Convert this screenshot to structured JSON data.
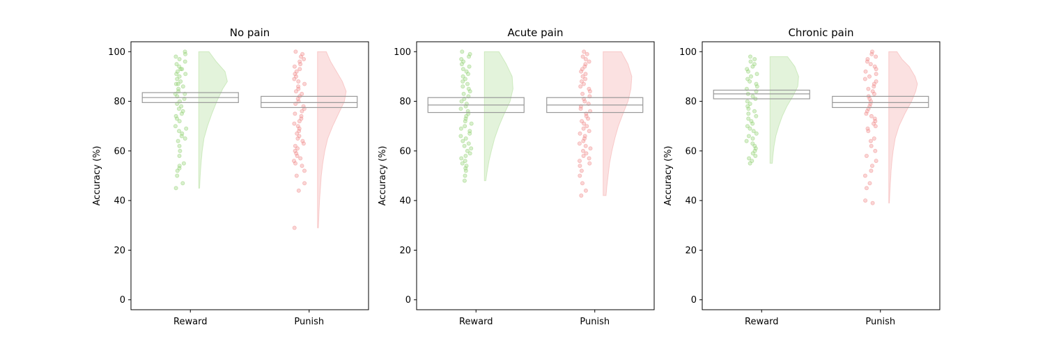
{
  "colors": {
    "reward": "#90d070",
    "punish": "#f08888",
    "box": "#999999"
  },
  "chart_data": [
    {
      "type": "raincloud",
      "title": "No pain",
      "ylabel": "Accuracy (%)",
      "ylim": [
        -4,
        104
      ],
      "yticks": [
        0,
        20,
        40,
        60,
        80,
        100
      ],
      "categories": [
        "Reward",
        "Punish"
      ],
      "box": [
        {
          "category": "Reward",
          "q1": 79.5,
          "median": 81.5,
          "q3": 83.5
        },
        {
          "category": "Punish",
          "q1": 77.5,
          "median": 79.5,
          "q3": 82
        }
      ],
      "series": [
        {
          "category": "Reward",
          "min": 45,
          "max": 100,
          "density": [
            [
              45,
              0.03
            ],
            [
              50,
              0.05
            ],
            [
              55,
              0.08
            ],
            [
              60,
              0.12
            ],
            [
              65,
              0.18
            ],
            [
              70,
              0.3
            ],
            [
              75,
              0.45
            ],
            [
              80,
              0.62
            ],
            [
              85,
              0.82
            ],
            [
              88,
              0.98
            ],
            [
              92,
              0.9
            ],
            [
              96,
              0.6
            ],
            [
              100,
              0.35
            ]
          ],
          "points": [
            100,
            99,
            98,
            97,
            96,
            95,
            94,
            93,
            93,
            92,
            91,
            91,
            90,
            89,
            88,
            87,
            87,
            86,
            85,
            84,
            83,
            83,
            82,
            81,
            80,
            79,
            78,
            77,
            76,
            75,
            74,
            73,
            72,
            70,
            69,
            68,
            67,
            66,
            65,
            64,
            62,
            60,
            58,
            55,
            54,
            53,
            52,
            50,
            47,
            45
          ]
        },
        {
          "category": "Punish",
          "min": 29,
          "max": 100,
          "density": [
            [
              29,
              0.03
            ],
            [
              35,
              0.05
            ],
            [
              40,
              0.07
            ],
            [
              45,
              0.1
            ],
            [
              50,
              0.13
            ],
            [
              55,
              0.18
            ],
            [
              60,
              0.25
            ],
            [
              65,
              0.35
            ],
            [
              70,
              0.52
            ],
            [
              75,
              0.72
            ],
            [
              80,
              0.92
            ],
            [
              84,
              0.98
            ],
            [
              88,
              0.85
            ],
            [
              92,
              0.65
            ],
            [
              96,
              0.45
            ],
            [
              100,
              0.3
            ]
          ],
          "points": [
            100,
            99,
            98,
            97,
            96,
            95,
            94,
            93,
            92,
            91,
            90,
            89,
            88,
            87,
            86,
            85,
            84,
            83,
            82,
            81,
            80,
            79,
            78,
            77,
            76,
            75,
            74,
            73,
            72,
            71,
            70,
            69,
            68,
            67,
            66,
            65,
            64,
            63,
            62,
            61,
            60,
            59,
            58,
            57,
            56,
            55,
            54,
            52,
            50,
            47,
            44,
            29
          ]
        }
      ]
    },
    {
      "type": "raincloud",
      "title": "Acute pain",
      "ylabel": "Accuracy (%)",
      "ylim": [
        -4,
        104
      ],
      "yticks": [
        0,
        20,
        40,
        60,
        80,
        100
      ],
      "categories": [
        "Reward",
        "Punish"
      ],
      "box": [
        {
          "category": "Reward",
          "q1": 75.5,
          "median": 78.5,
          "q3": 81.5
        },
        {
          "category": "Punish",
          "q1": 75.5,
          "median": 78.5,
          "q3": 81.5
        }
      ],
      "series": [
        {
          "category": "Reward",
          "min": 48,
          "max": 100,
          "density": [
            [
              48,
              0.05
            ],
            [
              52,
              0.1
            ],
            [
              56,
              0.16
            ],
            [
              60,
              0.24
            ],
            [
              65,
              0.35
            ],
            [
              70,
              0.5
            ],
            [
              75,
              0.68
            ],
            [
              80,
              0.88
            ],
            [
              85,
              0.98
            ],
            [
              90,
              0.95
            ],
            [
              95,
              0.75
            ],
            [
              100,
              0.5
            ]
          ],
          "points": [
            100,
            99,
            98,
            97,
            96,
            95,
            94,
            93,
            92,
            91,
            90,
            89,
            88,
            87,
            86,
            85,
            84,
            83,
            82,
            81,
            80,
            79,
            78,
            77,
            76,
            75,
            74,
            73,
            72,
            71,
            70,
            69,
            68,
            67,
            66,
            65,
            64,
            63,
            62,
            61,
            60,
            59,
            58,
            57,
            56,
            55,
            54,
            53,
            52,
            50,
            48
          ]
        },
        {
          "category": "Punish",
          "min": 42,
          "max": 100,
          "density": [
            [
              42,
              0.1
            ],
            [
              46,
              0.13
            ],
            [
              50,
              0.17
            ],
            [
              55,
              0.22
            ],
            [
              60,
              0.3
            ],
            [
              65,
              0.4
            ],
            [
              70,
              0.52
            ],
            [
              75,
              0.68
            ],
            [
              80,
              0.85
            ],
            [
              85,
              0.95
            ],
            [
              90,
              0.98
            ],
            [
              95,
              0.85
            ],
            [
              100,
              0.62
            ]
          ],
          "points": [
            100,
            99,
            98,
            97,
            96,
            95,
            94,
            93,
            92,
            91,
            90,
            89,
            88,
            87,
            86,
            85,
            84,
            83,
            82,
            81,
            80,
            79,
            78,
            77,
            76,
            75,
            74,
            73,
            72,
            71,
            70,
            69,
            68,
            67,
            66,
            65,
            64,
            63,
            62,
            61,
            60,
            59,
            58,
            57,
            56,
            55,
            54,
            52,
            50,
            47,
            44,
            42
          ]
        }
      ]
    },
    {
      "type": "raincloud",
      "title": "Chronic pain",
      "ylabel": "Accuracy (%)",
      "ylim": [
        -4,
        104
      ],
      "yticks": [
        0,
        20,
        40,
        60,
        80,
        100
      ],
      "categories": [
        "Reward",
        "Punish"
      ],
      "box": [
        {
          "category": "Reward",
          "q1": 81,
          "median": 83,
          "q3": 84.5
        },
        {
          "category": "Punish",
          "q1": 77.5,
          "median": 79.5,
          "q3": 82
        }
      ],
      "series": [
        {
          "category": "Reward",
          "min": 55,
          "max": 98,
          "density": [
            [
              55,
              0.08
            ],
            [
              58,
              0.1
            ],
            [
              62,
              0.14
            ],
            [
              66,
              0.2
            ],
            [
              70,
              0.3
            ],
            [
              74,
              0.42
            ],
            [
              78,
              0.58
            ],
            [
              82,
              0.78
            ],
            [
              86,
              0.95
            ],
            [
              90,
              0.98
            ],
            [
              94,
              0.85
            ],
            [
              98,
              0.6
            ]
          ],
          "points": [
            98,
            97,
            96,
            95,
            94,
            93,
            92,
            91,
            90,
            89,
            88,
            87,
            86,
            85,
            84,
            83,
            82,
            81,
            80,
            79,
            78,
            77,
            76,
            75,
            74,
            73,
            72,
            71,
            70,
            69,
            68,
            67,
            66,
            65,
            64,
            63,
            62,
            61,
            60,
            59,
            58,
            57,
            56,
            55
          ]
        },
        {
          "category": "Punish",
          "min": 39,
          "max": 100,
          "density": [
            [
              39,
              0.02
            ],
            [
              44,
              0.04
            ],
            [
              48,
              0.06
            ],
            [
              52,
              0.08
            ],
            [
              56,
              0.11
            ],
            [
              60,
              0.15
            ],
            [
              65,
              0.22
            ],
            [
              70,
              0.35
            ],
            [
              75,
              0.55
            ],
            [
              80,
              0.78
            ],
            [
              84,
              0.92
            ],
            [
              87,
              0.98
            ],
            [
              90,
              0.9
            ],
            [
              94,
              0.7
            ],
            [
              97,
              0.45
            ],
            [
              100,
              0.28
            ]
          ],
          "points": [
            100,
            99,
            98,
            97,
            96,
            95,
            94,
            93,
            92,
            91,
            90,
            89,
            88,
            87,
            86,
            85,
            84,
            83,
            82,
            81,
            80,
            79,
            78,
            77,
            76,
            75,
            74,
            73,
            72,
            71,
            70,
            69,
            68,
            65,
            64,
            62,
            60,
            58,
            56,
            54,
            52,
            50,
            47,
            45,
            40,
            39
          ]
        }
      ]
    }
  ]
}
